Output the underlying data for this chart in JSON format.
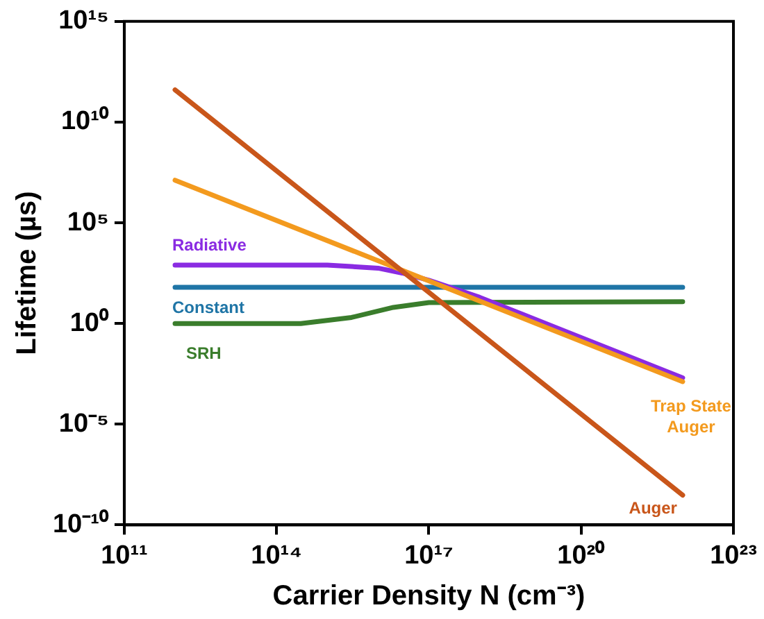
{
  "chart_data": {
    "type": "line",
    "xlabel": "Carrier Density N (cm⁻³)",
    "ylabel": "Lifetime (µs)",
    "log": "xy",
    "grid": false,
    "legend": false,
    "marker": "none",
    "line_style": "solid",
    "xlim": [
      100000000000.0,
      1e+23
    ],
    "xticks": [
      {
        "value": 100000000000.0,
        "label": "10¹¹"
      },
      {
        "value": 100000000000000.0,
        "label": "10¹⁴"
      },
      {
        "value": 1e+17,
        "label": "10¹⁷"
      },
      {
        "value": 1e+20,
        "label": "10²⁰"
      },
      {
        "value": 1e+23,
        "label": "10²³"
      }
    ],
    "ylim": [
      1e-10,
      1000000000000000.0
    ],
    "yticks": [
      {
        "value": 1e-10,
        "label": "10⁻¹⁰"
      },
      {
        "value": 1e-05,
        "label": "10⁻⁵"
      },
      {
        "value": 1,
        "label": "10⁰"
      },
      {
        "value": 100000.0,
        "label": "10⁵"
      },
      {
        "value": 10000000000.0,
        "label": "10¹⁰"
      },
      {
        "value": 1000000000000000.0,
        "label": "10¹⁵"
      }
    ],
    "series": [
      {
        "name": "Auger",
        "color": "#c9561a",
        "x": [
          1000000000000.0,
          1e+17,
          1e+22
        ],
        "values": [
          400000000000.0,
          35,
          3e-09
        ]
      },
      {
        "name": "Trap State Auger",
        "color": "#f39a1e",
        "x": [
          1000000000000.0,
          1e+17,
          1e+22
        ],
        "values": [
          13000000.0,
          130,
          0.0013
        ]
      },
      {
        "name": "Radiative",
        "color": "#8a2be2",
        "x": [
          1000000000000.0,
          1000000000000000.0,
          1e+16,
          3e+16,
          1e+17,
          1e+18,
          1e+20,
          1e+22
        ],
        "values": [
          800,
          800,
          560,
          320,
          140,
          20,
          0.2,
          0.002
        ]
      },
      {
        "name": "Constant",
        "color": "#1f75a6",
        "x": [
          1000000000000.0,
          1e+22
        ],
        "values": [
          63,
          63
        ]
      },
      {
        "name": "SRH",
        "color": "#3a7d2c",
        "x": [
          1000000000000.0,
          300000000000000.0,
          3000000000000000.0,
          2e+16,
          1e+17,
          1e+22
        ],
        "values": [
          1,
          1,
          2,
          6.3,
          11,
          12
        ]
      }
    ]
  }
}
